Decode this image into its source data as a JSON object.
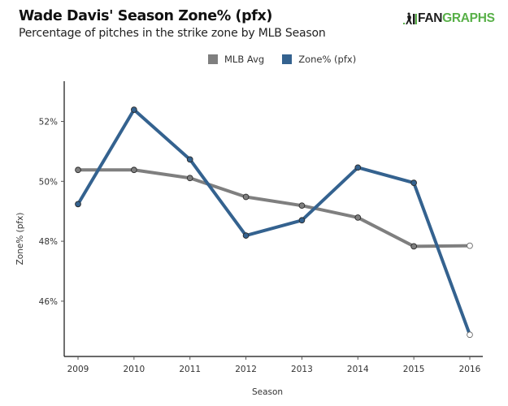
{
  "header": {
    "title": "Wade Davis' Season Zone% (pfx)",
    "subtitle": "Percentage of pitches in the strike zone by MLB Season",
    "logo_text_dark": "FAN",
    "logo_text_green": "GRAPHS"
  },
  "colors": {
    "mlb_avg": "#7f7f7f",
    "zone": "#34628f",
    "axis": "#111111",
    "logo_green": "#58b048"
  },
  "chart_data": {
    "type": "line",
    "title": "Wade Davis' Season Zone% (pfx)",
    "subtitle": "Percentage of pitches in the strike zone by MLB Season",
    "xlabel": "Season",
    "ylabel": "Zone% (pfx)",
    "x": [
      "2009",
      "2010",
      "2011",
      "2012",
      "2013",
      "2014",
      "2015",
      "2016"
    ],
    "yticks": [
      46,
      48,
      50,
      52
    ],
    "ytick_labels": [
      "46%",
      "48%",
      "50%",
      "52%"
    ],
    "ylim": [
      43.2,
      53.9
    ],
    "grid": false,
    "legend_position": "top-center",
    "series": [
      {
        "name": "MLB Avg",
        "color": "#7f7f7f",
        "values": [
          50.38,
          50.38,
          50.11,
          49.48,
          49.19,
          48.79,
          47.83,
          47.85
        ],
        "last_point_hollow": true
      },
      {
        "name": "Zone% (pfx)",
        "color": "#34628f",
        "values": [
          49.24,
          52.39,
          50.73,
          48.19,
          48.7,
          50.46,
          49.95,
          44.88
        ],
        "last_point_hollow": true
      }
    ]
  }
}
